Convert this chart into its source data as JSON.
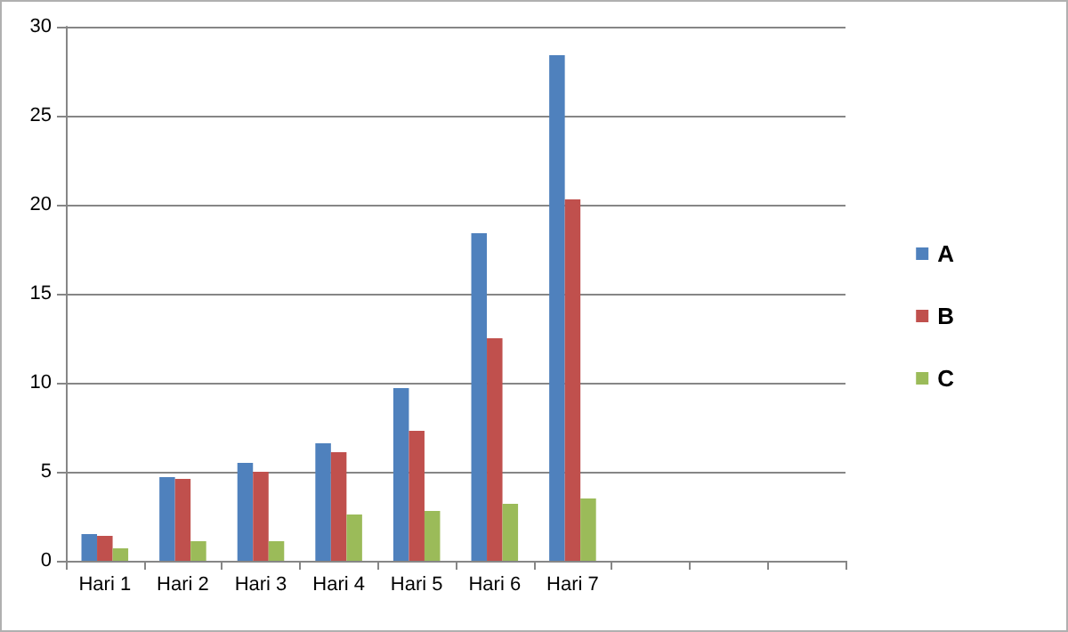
{
  "chart_data": {
    "type": "bar",
    "categories": [
      "Hari 1",
      "Hari 2",
      "Hari 3",
      "Hari 4",
      "Hari 5",
      "Hari 6",
      "Hari 7",
      null,
      null,
      null
    ],
    "series": [
      {
        "name": "A",
        "color": "#4f81bd",
        "values": [
          1.5,
          4.7,
          5.5,
          6.6,
          9.7,
          18.4,
          28.4,
          null,
          null,
          null
        ]
      },
      {
        "name": "B",
        "color": "#c0504d",
        "values": [
          1.4,
          4.6,
          5.0,
          6.1,
          7.3,
          12.5,
          20.3,
          null,
          null,
          null
        ]
      },
      {
        "name": "C",
        "color": "#9bbb59",
        "values": [
          0.7,
          1.1,
          1.1,
          2.6,
          2.8,
          3.2,
          3.5,
          null,
          null,
          null
        ]
      }
    ],
    "ylim": [
      0,
      30
    ],
    "yticks": [
      0,
      5,
      10,
      15,
      20,
      25,
      30
    ],
    "grid": "y",
    "legend": "right"
  }
}
